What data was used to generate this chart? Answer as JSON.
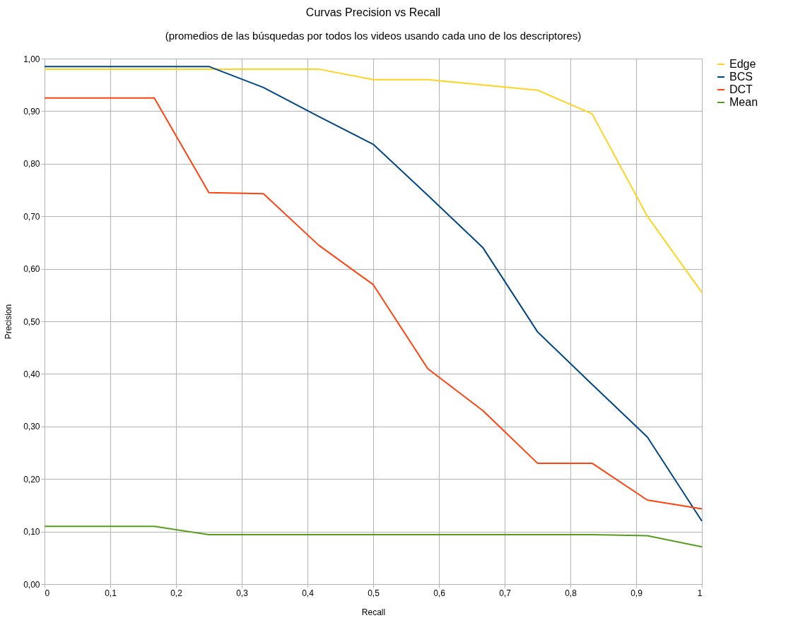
{
  "chart_data": {
    "type": "line",
    "title": "Curvas Precision vs Recall",
    "subtitle": "(promedios de las búsquedas por todos los videos usando cada uno de los descriptores)",
    "xlabel": "Recall",
    "ylabel": "Precision",
    "x": [
      0,
      0.083,
      0.167,
      0.25,
      0.333,
      0.417,
      0.5,
      0.583,
      0.667,
      0.75,
      0.833,
      0.917,
      1
    ],
    "series": [
      {
        "name": "Edge",
        "color": "#ffd320",
        "values": [
          0.98,
          0.98,
          0.98,
          0.98,
          0.98,
          0.98,
          0.96,
          0.96,
          0.95,
          0.94,
          0.895,
          0.7,
          0.555
        ]
      },
      {
        "name": "BCS",
        "color": "#004586",
        "values": [
          0.985,
          0.985,
          0.985,
          0.985,
          0.945,
          0.89,
          0.837,
          0.74,
          0.64,
          0.48,
          0.38,
          0.28,
          0.12
        ]
      },
      {
        "name": "DCT",
        "color": "#ff420e",
        "values": [
          0.925,
          0.925,
          0.925,
          0.745,
          0.743,
          0.645,
          0.57,
          0.41,
          0.33,
          0.23,
          0.23,
          0.16,
          0.143
        ]
      },
      {
        "name": "Mean",
        "color": "#579d1c",
        "values": [
          0.11,
          0.11,
          0.11,
          0.094,
          0.094,
          0.094,
          0.094,
          0.094,
          0.094,
          0.094,
          0.094,
          0.092,
          0.071
        ]
      }
    ],
    "xlim": [
      0,
      1
    ],
    "ylim": [
      0,
      1
    ],
    "xticks": [
      0,
      {
        "value": 0.1,
        "label": "0,1"
      },
      {
        "value": 0.2,
        "label": "0,2"
      },
      {
        "value": 0.3,
        "label": "0,3"
      },
      {
        "value": 0.4,
        "label": "0,4"
      },
      {
        "value": 0.5,
        "label": "0,5"
      },
      {
        "value": 0.6,
        "label": "0,6"
      },
      {
        "value": 0.7,
        "label": "0,7"
      },
      {
        "value": 0.8,
        "label": "0,8"
      },
      {
        "value": 0.9,
        "label": "0,9"
      },
      1
    ],
    "yticks": [
      {
        "value": 0,
        "label": "0,00"
      },
      {
        "value": 0.1,
        "label": "0,10"
      },
      {
        "value": 0.2,
        "label": "0,20"
      },
      {
        "value": 0.3,
        "label": "0,30"
      },
      {
        "value": 0.4,
        "label": "0,40"
      },
      {
        "value": 0.5,
        "label": "0,50"
      },
      {
        "value": 0.6,
        "label": "0,60"
      },
      {
        "value": 0.7,
        "label": "0,70"
      },
      {
        "value": 0.8,
        "label": "0,80"
      },
      {
        "value": 0.9,
        "label": "0,90"
      },
      {
        "value": 1,
        "label": "1,00"
      }
    ],
    "grid": true,
    "legend": "right",
    "marker": "none",
    "line_style": "solid"
  }
}
